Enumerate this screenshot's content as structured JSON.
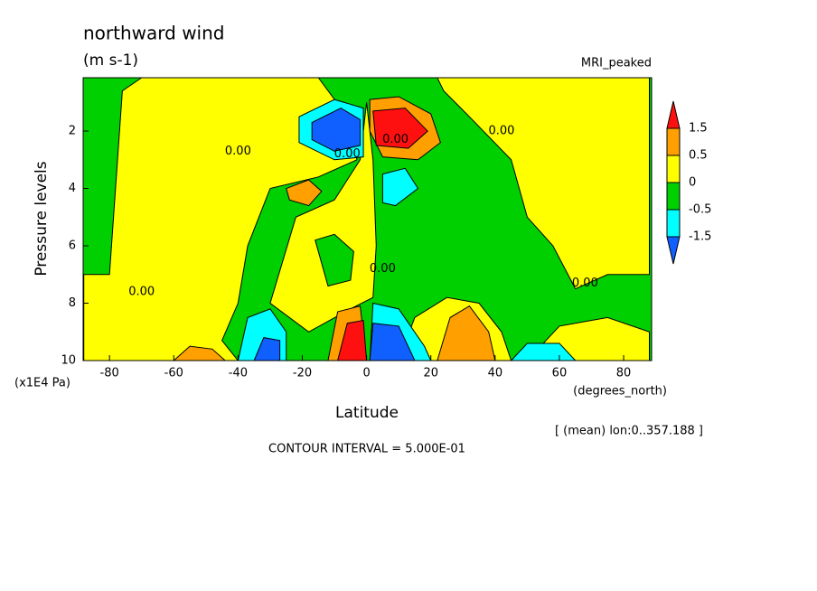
{
  "chart_data": {
    "type": "contour",
    "title": "northward wind",
    "units": "(m s-1)",
    "dataset": "MRI_peaked",
    "y_label": "Pressure levels",
    "y_units": "(x1E4 Pa)",
    "x_label": "Latitude",
    "x_units": "(degrees_north)",
    "region_note": "[ (mean) lon:0..357.188 ]",
    "footer": "CONTOUR INTERVAL = 5.000E-01",
    "xlim": [
      -88.2,
      88.7
    ],
    "ylim": [
      10,
      0.14
    ],
    "xticks": [
      -80,
      -60,
      -40,
      -20,
      0,
      20,
      40,
      60,
      80
    ],
    "yticks": [
      2,
      4,
      6,
      8,
      10
    ],
    "colorbar": {
      "levels": [
        1.5,
        0.5,
        0,
        -0.5,
        -1.5
      ],
      "colors": [
        "#ff1010",
        "#ffa000",
        "#ffff00",
        "#00d000",
        "#00ffff",
        "#1060ff"
      ]
    },
    "background_color": "#00d000",
    "regions": [
      {
        "color": "#ffff00",
        "lat": [
          -88,
          -88,
          -80,
          -76,
          -70,
          -15,
          -6,
          -3,
          -15,
          -30,
          -37,
          -40,
          -45,
          -40
        ],
        "p": [
          10,
          7,
          7,
          0.6,
          0.14,
          0.14,
          1.5,
          3,
          3.6,
          4,
          6,
          8,
          9.3,
          10
        ]
      },
      {
        "color": "#ffff00",
        "lat": [
          -30,
          -22,
          -10,
          -2,
          0,
          2,
          3,
          2,
          -5,
          -18
        ],
        "p": [
          8,
          5,
          4.4,
          3,
          1,
          3,
          6,
          7.8,
          8.2,
          9
        ]
      },
      {
        "color": "#00d000",
        "lat": [
          -16,
          -10,
          -4,
          -5,
          -12
        ],
        "p": [
          5.8,
          5.6,
          6.2,
          7.2,
          7.4
        ]
      },
      {
        "color": "#ffff00",
        "lat": [
          28,
          88,
          88,
          75,
          65,
          58,
          50,
          45,
          32,
          24,
          22
        ],
        "p": [
          0.14,
          0.14,
          7,
          7,
          7.5,
          6,
          5,
          3,
          1.5,
          0.6,
          0.14
        ]
      },
      {
        "color": "#ffff00",
        "lat": [
          10,
          15,
          25,
          35,
          42,
          45,
          40,
          20
        ],
        "p": [
          10,
          8.5,
          7.8,
          8,
          9,
          10,
          10,
          10
        ]
      },
      {
        "color": "#ffff00",
        "lat": [
          50,
          60,
          75,
          88,
          88
        ],
        "p": [
          10,
          8.8,
          8.5,
          9,
          10
        ]
      },
      {
        "color": "#ffa000",
        "lat": [
          -60,
          -55,
          -48,
          -44
        ],
        "p": [
          10,
          9.5,
          9.6,
          10
        ]
      },
      {
        "color": "#ffa000",
        "lat": [
          -25,
          -18,
          -14,
          -18,
          -24
        ],
        "p": [
          4,
          3.7,
          4.1,
          4.6,
          4.4
        ]
      },
      {
        "color": "#ffa000",
        "lat": [
          -12,
          -9,
          -2,
          0
        ],
        "p": [
          10,
          8.3,
          8.1,
          10
        ]
      },
      {
        "color": "#ff1010",
        "lat": [
          -9,
          -6,
          -1,
          0
        ],
        "p": [
          10,
          8.7,
          8.6,
          10
        ]
      },
      {
        "color": "#ffa000",
        "lat": [
          22,
          26,
          32,
          38,
          40
        ],
        "p": [
          10,
          8.5,
          8.1,
          9,
          10
        ]
      },
      {
        "color": "#ffa000",
        "lat": [
          1,
          10,
          20,
          23,
          16,
          5,
          1
        ],
        "p": [
          0.9,
          0.8,
          1.4,
          2.4,
          3,
          2.9,
          2
        ]
      },
      {
        "color": "#ff1010",
        "lat": [
          2,
          12,
          19,
          13,
          3
        ],
        "p": [
          1.3,
          1.2,
          2,
          2.6,
          2.5
        ]
      },
      {
        "color": "#00ffff",
        "lat": [
          -21,
          -10,
          -1,
          -1,
          -10,
          -21
        ],
        "p": [
          1.5,
          0.9,
          1.2,
          2.9,
          3,
          2.4
        ]
      },
      {
        "color": "#1060ff",
        "lat": [
          -17,
          -8,
          -2,
          -2,
          -10,
          -17
        ],
        "p": [
          1.7,
          1.2,
          1.6,
          2.5,
          2.7,
          2.3
        ]
      },
      {
        "color": "#00ffff",
        "lat": [
          5,
          12,
          16,
          9,
          5
        ],
        "p": [
          3.5,
          3.3,
          4,
          4.6,
          4.5
        ]
      },
      {
        "color": "#00ffff",
        "lat": [
          -40,
          -37,
          -30,
          -25,
          -25
        ],
        "p": [
          10,
          8.5,
          8.2,
          9,
          10
        ]
      },
      {
        "color": "#1060ff",
        "lat": [
          -35,
          -32,
          -27,
          -27
        ],
        "p": [
          10,
          9.2,
          9.3,
          10
        ]
      },
      {
        "color": "#00ffff",
        "lat": [
          1,
          2,
          10,
          18,
          20
        ],
        "p": [
          10,
          8,
          8.2,
          9.5,
          10
        ]
      },
      {
        "color": "#1060ff",
        "lat": [
          1,
          2,
          10,
          15
        ],
        "p": [
          10,
          8.7,
          8.8,
          10
        ]
      },
      {
        "color": "#00ffff",
        "lat": [
          45,
          50,
          60,
          65
        ],
        "p": [
          10,
          9.4,
          9.4,
          10
        ]
      }
    ],
    "annotations": [
      {
        "text": "0.00",
        "lat": -40,
        "p": 2.7
      },
      {
        "text": "0.00",
        "lat": -6,
        "p": 2.8
      },
      {
        "text": "0.00",
        "lat": 9,
        "p": 2.3
      },
      {
        "text": "0.00",
        "lat": 42,
        "p": 2
      },
      {
        "text": "0.00",
        "lat": 5,
        "p": 6.8
      },
      {
        "text": "0.00",
        "lat": -70,
        "p": 7.6
      },
      {
        "text": "0.00",
        "lat": 68,
        "p": 7.3
      }
    ]
  }
}
